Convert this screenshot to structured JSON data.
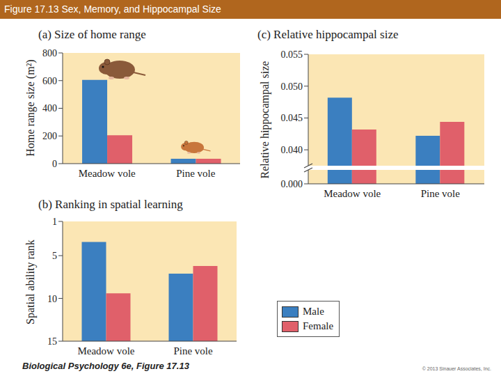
{
  "header": "Figure 17.13 Sex, Memory, and Hippocampal Size",
  "footer": "Biological Psychology 6e, Figure 17.13",
  "copyright": "© 2013 Sinauer Associates, Inc.",
  "chart_data": [
    {
      "type": "bar",
      "title": "(a) Size of home range",
      "y_label": "Home range size (m²)",
      "categories": [
        "Meadow vole",
        "Pine vole"
      ],
      "series": [
        {
          "name": "Male",
          "color": "#3b7fc0",
          "values": [
            605,
            35
          ]
        },
        {
          "name": "Female",
          "color": "#e0606a",
          "values": [
            205,
            35
          ]
        }
      ],
      "ylim": [
        0,
        800
      ],
      "yticks": [
        0,
        200,
        400,
        600,
        800
      ],
      "grid": false
    },
    {
      "type": "bar",
      "title": "(b) Ranking in spatial learning",
      "y_label": "Spatial ability rank",
      "categories": [
        "Meadow vole",
        "Pine vole"
      ],
      "series": [
        {
          "name": "Male",
          "color": "#3b7fc0",
          "values": [
            3.4,
            7.1
          ]
        },
        {
          "name": "Female",
          "color": "#e0606a",
          "values": [
            9.4,
            6.2
          ]
        }
      ],
      "ylim": [
        15,
        1
      ],
      "yticks": [
        1,
        5,
        10,
        15
      ],
      "grid": false
    },
    {
      "type": "bar",
      "title": "(c) Relative hippocampal size",
      "y_label": "Relative hippocampal size",
      "categories": [
        "Meadow vole",
        "Pine vole"
      ],
      "series": [
        {
          "name": "Male",
          "color": "#3b7fc0",
          "values": [
            0.0482,
            0.0422
          ]
        },
        {
          "name": "Female",
          "color": "#e0606a",
          "values": [
            0.0432,
            0.0444
          ]
        }
      ],
      "ylim": [
        0,
        0.055
      ],
      "yticks": [
        {
          "value": 0,
          "label": "0.000"
        },
        {
          "value": 0.04,
          "label": "0.040"
        },
        {
          "value": 0.045,
          "label": "0.045"
        },
        {
          "value": 0.05,
          "label": "0.050"
        },
        0.055
      ],
      "grid": false
    }
  ]
}
